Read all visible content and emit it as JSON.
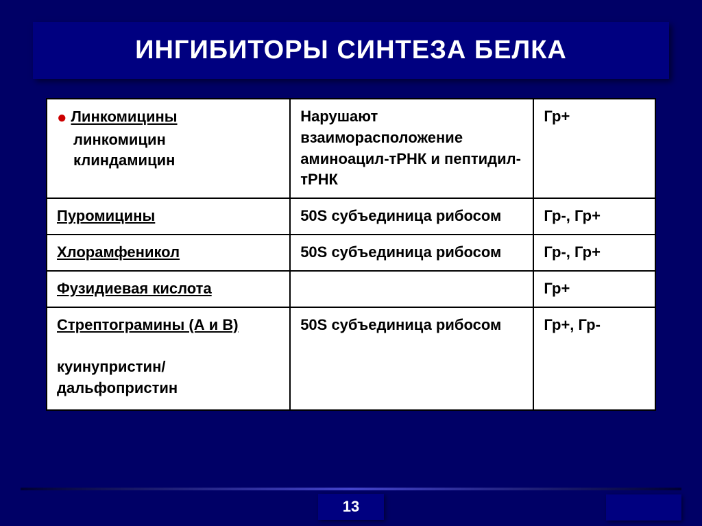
{
  "slide": {
    "title": "ИНГИБИТОРЫ СИНТЕЗА БЕЛКА",
    "page_number": "13",
    "background_color": "#000066",
    "banner_color": "#000080",
    "title_color": "#ffffff",
    "title_fontsize": 38,
    "bullet_color": "#cc0000"
  },
  "table": {
    "rows": [
      {
        "group": "Линкомицины",
        "drugs": [
          "линкомицин",
          "клиндамицин"
        ],
        "has_bullet": true,
        "mechanism": "Нарушают взаиморасположение аминоацил-тРНК и пептидил-тРНК",
        "spectrum": "Гр+"
      },
      {
        "group": "Пуромицины",
        "drugs": [],
        "mechanism": "50S субъединица рибосом",
        "spectrum": "Гр-, Гр+"
      },
      {
        "group": "Хлорамфеникол",
        "drugs": [],
        "mechanism": "50S субъединица рибосом",
        "spectrum": "Гр-, Гр+"
      },
      {
        "group": "Фузидиевая кислота",
        "drugs": [],
        "mechanism": "",
        "spectrum": "Гр+"
      },
      {
        "group": "Стрептограмины (А и В)",
        "drugs_below": "куинупристин/дальфопристин",
        "drugs": [],
        "mechanism": "50S субъединица рибосом",
        "spectrum": "Гр+, Гр-"
      }
    ],
    "border_color": "#000000",
    "cell_fontsize": 22,
    "background_color": "#ffffff",
    "col_widths": [
      "40%",
      "40%",
      "20%"
    ]
  }
}
